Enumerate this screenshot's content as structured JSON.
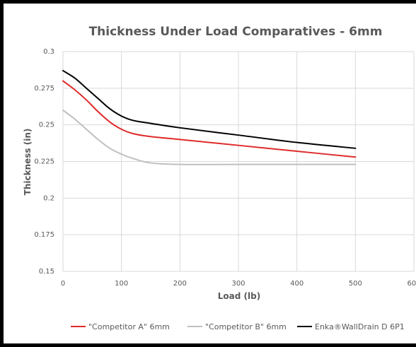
{
  "chart_data": {
    "type": "line",
    "title": "Thickness Under Load Comparatives - 6mm",
    "xlabel": "Load (lb)",
    "ylabel": "Thickness (in)",
    "xlim": [
      0,
      600
    ],
    "ylim": [
      0.15,
      0.3
    ],
    "x_ticks": [
      "0",
      "100",
      "200",
      "300",
      "400",
      "500",
      "600"
    ],
    "y_ticks": [
      "0.15",
      "0.175",
      "0.2",
      "0.225",
      "0.25",
      "0.275",
      "0.3"
    ],
    "grid": true,
    "legend_position": "bottom",
    "series": [
      {
        "name": "\"Competitor A\" 6mm",
        "color": "#e02b2b",
        "x": [
          0,
          20,
          40,
          60,
          80,
          100,
          120,
          150,
          200,
          300,
          400,
          500
        ],
        "y": [
          0.28,
          0.274,
          0.267,
          0.259,
          0.252,
          0.247,
          0.244,
          0.242,
          0.24,
          0.236,
          0.232,
          0.228
        ]
      },
      {
        "name": "\"Competitor B\" 6mm",
        "color": "#bfbfbf",
        "x": [
          0,
          20,
          40,
          60,
          80,
          100,
          120,
          150,
          200,
          300,
          400,
          500
        ],
        "y": [
          0.26,
          0.254,
          0.247,
          0.24,
          0.234,
          0.23,
          0.227,
          0.224,
          0.223,
          0.223,
          0.223,
          0.223
        ]
      },
      {
        "name": "Enka®WallDrain D 6P1",
        "color": "#000000",
        "x": [
          0,
          20,
          40,
          60,
          80,
          100,
          120,
          150,
          200,
          300,
          400,
          500
        ],
        "y": [
          0.287,
          0.282,
          0.275,
          0.268,
          0.261,
          0.256,
          0.253,
          0.251,
          0.248,
          0.243,
          0.238,
          0.234
        ]
      }
    ]
  }
}
